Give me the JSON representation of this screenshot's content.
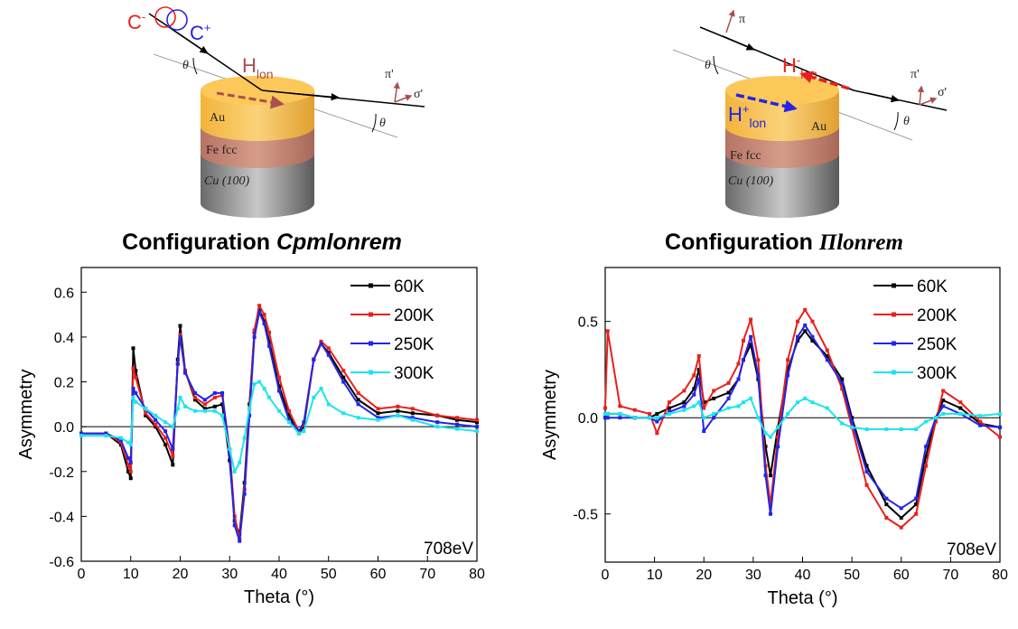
{
  "diagrams": [
    {
      "labels": {
        "c_minus": {
          "text": "C",
          "sup": "-"
        },
        "c_plus": {
          "text": "C",
          "sup": "+"
        },
        "theta_in": "θ",
        "theta_out": "θ",
        "field": {
          "text": "H",
          "sub": "lon"
        },
        "layers": [
          "Au",
          "Fe fcc",
          "Cu (100)"
        ],
        "pi_out": "π'",
        "sigma_out": "σ'"
      },
      "caption": {
        "prefix": "Configuration",
        "name": "Cpmlonrem"
      }
    },
    {
      "labels": {
        "pi_in": "π",
        "theta_in": "θ",
        "theta_out": "θ",
        "field_minus": {
          "text": "H",
          "sup": "-",
          "sub": "lon"
        },
        "field_plus": {
          "text": "H",
          "sup": "+",
          "sub": "lon"
        },
        "layers": [
          "Au",
          "Fe fcc",
          "Cu (100)"
        ],
        "pi_out": "π'",
        "sigma_out": "σ'"
      },
      "caption": {
        "prefix": "Configuration",
        "name": "Πlonrem"
      }
    }
  ],
  "chart_data": [
    {
      "type": "line",
      "xlabel": "Theta (°)",
      "ylabel": "Asymmetry",
      "annotation": "708eV",
      "legend": "upper right",
      "xlim": [
        0,
        80
      ],
      "xticks": [
        0,
        10,
        20,
        30,
        40,
        50,
        60,
        70,
        80
      ],
      "ylim": [
        -0.6,
        0.71
      ],
      "yticks": [
        -0.6,
        -0.4,
        -0.2,
        {
          "value": 0,
          "label": "0.0"
        },
        0.2,
        0.4,
        0.6
      ],
      "x": [
        0,
        5,
        8,
        9.5,
        10,
        10.5,
        11,
        13,
        15,
        17,
        18.5,
        19.5,
        20,
        21,
        23,
        25,
        27,
        28.5,
        30,
        31,
        32,
        33,
        34,
        35,
        36,
        37,
        38,
        40,
        42,
        44,
        45,
        47,
        48.5,
        50,
        53,
        56,
        60,
        64,
        67,
        72,
        76,
        80
      ],
      "series": [
        {
          "name": "60K",
          "color": "#000000",
          "values": [
            -0.03,
            -0.03,
            -0.08,
            -0.2,
            -0.23,
            0.35,
            0.25,
            0.05,
            0.0,
            -0.08,
            -0.17,
            0.3,
            0.45,
            0.25,
            0.12,
            0.08,
            0.09,
            0.1,
            -0.15,
            -0.42,
            -0.48,
            -0.25,
            0.1,
            0.42,
            0.52,
            0.47,
            0.38,
            0.18,
            0.05,
            -0.03,
            0.0,
            0.3,
            0.37,
            0.33,
            0.22,
            0.12,
            0.06,
            0.07,
            0.06,
            0.05,
            0.03,
            0.02
          ]
        },
        {
          "name": "200K",
          "color": "#e8201c",
          "values": [
            -0.03,
            -0.03,
            -0.07,
            -0.17,
            -0.2,
            0.26,
            0.22,
            0.06,
            0.01,
            -0.05,
            -0.13,
            0.28,
            0.41,
            0.25,
            0.13,
            0.1,
            0.13,
            0.14,
            -0.1,
            -0.4,
            -0.5,
            -0.28,
            0.08,
            0.43,
            0.54,
            0.5,
            0.42,
            0.22,
            0.07,
            -0.02,
            0.01,
            0.3,
            0.38,
            0.35,
            0.25,
            0.15,
            0.08,
            0.09,
            0.08,
            0.05,
            0.04,
            0.03
          ]
        },
        {
          "name": "250K",
          "color": "#2424e6",
          "values": [
            -0.03,
            -0.03,
            -0.06,
            -0.14,
            -0.16,
            0.17,
            0.15,
            0.08,
            0.03,
            -0.02,
            -0.1,
            0.28,
            0.4,
            0.24,
            0.15,
            0.12,
            0.15,
            0.15,
            -0.12,
            -0.44,
            -0.51,
            -0.3,
            0.05,
            0.4,
            0.51,
            0.46,
            0.36,
            0.16,
            0.03,
            -0.02,
            0.02,
            0.3,
            0.37,
            0.32,
            0.2,
            0.1,
            0.04,
            0.05,
            0.04,
            0.02,
            0.01,
            0.0
          ]
        },
        {
          "name": "300K",
          "color": "#1ee4ee",
          "values": [
            -0.04,
            -0.04,
            -0.05,
            -0.07,
            -0.08,
            0.13,
            0.11,
            0.08,
            0.05,
            0.02,
            0.0,
            0.08,
            0.13,
            0.09,
            0.07,
            0.07,
            0.07,
            0.05,
            -0.1,
            -0.2,
            -0.16,
            -0.05,
            0.08,
            0.19,
            0.2,
            0.17,
            0.13,
            0.07,
            0.02,
            -0.03,
            -0.02,
            0.13,
            0.17,
            0.1,
            0.06,
            0.04,
            0.03,
            0.05,
            0.03,
            0.0,
            -0.01,
            -0.02
          ]
        }
      ]
    },
    {
      "type": "line",
      "xlabel": "Theta (°)",
      "ylabel": "Asymmetry",
      "annotation": "708eV",
      "legend": "upper right",
      "xlim": [
        0,
        80
      ],
      "xticks": [
        0,
        10,
        20,
        30,
        40,
        50,
        60,
        70,
        80
      ],
      "ylim": [
        -0.75,
        0.78
      ],
      "yticks": [
        -0.5,
        {
          "value": 0,
          "label": "0.0"
        },
        0.5
      ],
      "x": [
        0,
        0.5,
        3,
        6,
        9,
        10.5,
        13,
        16,
        18,
        19,
        20,
        22,
        25,
        27,
        28,
        29.5,
        31,
        32.5,
        33.5,
        35,
        37,
        39,
        40.5,
        42,
        45,
        48,
        50,
        53,
        57,
        60,
        63,
        65,
        67,
        68.5,
        72,
        76,
        80
      ],
      "series": [
        {
          "name": "60K",
          "color": "#000000",
          "values": [
            0.0,
            0.02,
            0.02,
            0.0,
            0.0,
            0.02,
            0.05,
            0.08,
            0.15,
            0.25,
            0.08,
            0.1,
            0.13,
            0.2,
            0.3,
            0.38,
            0.2,
            -0.15,
            -0.3,
            -0.05,
            0.25,
            0.4,
            0.45,
            0.4,
            0.32,
            0.2,
            0.0,
            -0.25,
            -0.45,
            -0.52,
            -0.45,
            -0.2,
            0.0,
            0.09,
            0.05,
            -0.03,
            -0.05
          ]
        },
        {
          "name": "200K",
          "color": "#e8201c",
          "values": [
            0.05,
            0.45,
            0.06,
            0.04,
            0.02,
            -0.08,
            0.08,
            0.14,
            0.22,
            0.32,
            0.05,
            0.14,
            0.18,
            0.28,
            0.4,
            0.51,
            0.3,
            -0.25,
            -0.45,
            -0.1,
            0.3,
            0.5,
            0.56,
            0.5,
            0.35,
            0.15,
            -0.05,
            -0.35,
            -0.52,
            -0.57,
            -0.5,
            -0.25,
            -0.02,
            0.14,
            0.08,
            -0.02,
            -0.1
          ]
        },
        {
          "name": "250K",
          "color": "#2424e6",
          "values": [
            0.0,
            0.0,
            0.0,
            0.0,
            0.0,
            -0.02,
            0.03,
            0.06,
            0.12,
            0.2,
            -0.07,
            0.0,
            0.1,
            0.2,
            0.3,
            0.42,
            0.22,
            -0.3,
            -0.5,
            -0.15,
            0.22,
            0.42,
            0.48,
            0.42,
            0.3,
            0.18,
            -0.02,
            -0.28,
            -0.42,
            -0.47,
            -0.42,
            -0.15,
            0.0,
            0.06,
            0.02,
            -0.04,
            -0.05
          ]
        },
        {
          "name": "300K",
          "color": "#1ee4ee",
          "values": [
            0.02,
            0.02,
            0.02,
            0.0,
            0.0,
            0.0,
            0.02,
            0.04,
            0.06,
            0.08,
            0.0,
            0.02,
            0.05,
            0.06,
            0.08,
            0.1,
            0.0,
            -0.08,
            -0.1,
            -0.05,
            0.02,
            0.08,
            0.1,
            0.08,
            0.05,
            -0.03,
            -0.05,
            -0.06,
            -0.06,
            -0.06,
            -0.06,
            -0.02,
            0.0,
            0.02,
            0.02,
            0.01,
            0.02
          ]
        }
      ]
    }
  ]
}
